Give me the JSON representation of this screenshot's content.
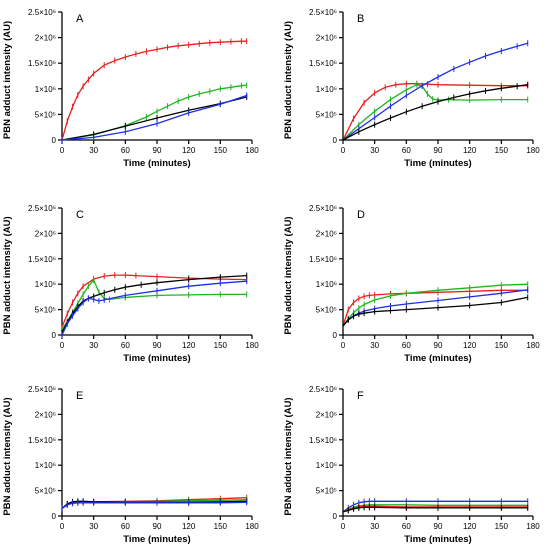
{
  "figure": {
    "colors": {
      "red": "#e8201e",
      "green": "#1fb51f",
      "blue": "#1c2fe6",
      "black": "#000000"
    }
  },
  "chart_data": [
    {
      "type": "line",
      "panel": "A",
      "xlabel": "Time (minutes)",
      "ylabel": "PBN adduct intensity (AU)",
      "xlim": [
        0,
        180
      ],
      "ylim": [
        0,
        2500000
      ],
      "xticks": [
        "0",
        "30",
        "60",
        "90",
        "120",
        "150",
        "180"
      ],
      "yticks": [
        "0",
        "5×10⁵",
        "1×10⁶",
        "1.5×10⁶",
        "2×10⁶",
        "2.5×10⁶"
      ],
      "series": [
        {
          "color": "red",
          "x": [
            0,
            5,
            10,
            15,
            20,
            25,
            30,
            40,
            50,
            60,
            70,
            80,
            90,
            100,
            110,
            120,
            130,
            140,
            150,
            160,
            170,
            175
          ],
          "y": [
            0,
            370000,
            650000,
            880000,
            1050000,
            1180000,
            1300000,
            1460000,
            1550000,
            1620000,
            1680000,
            1730000,
            1770000,
            1810000,
            1840000,
            1860000,
            1880000,
            1900000,
            1910000,
            1920000,
            1930000,
            1930000
          ]
        },
        {
          "color": "green",
          "x": [
            0,
            30,
            60,
            80,
            90,
            100,
            110,
            120,
            130,
            140,
            150,
            160,
            170,
            175
          ],
          "y": [
            0,
            100000,
            280000,
            450000,
            560000,
            660000,
            760000,
            840000,
            900000,
            950000,
            1000000,
            1030000,
            1060000,
            1070000
          ]
        },
        {
          "color": "black",
          "x": [
            0,
            30,
            60,
            90,
            120,
            150,
            175
          ],
          "y": [
            0,
            110000,
            270000,
            430000,
            580000,
            710000,
            840000
          ]
        },
        {
          "color": "blue",
          "x": [
            0,
            30,
            60,
            90,
            120,
            150,
            175
          ],
          "y": [
            0,
            50000,
            160000,
            320000,
            530000,
            700000,
            870000
          ]
        }
      ]
    },
    {
      "type": "line",
      "panel": "B",
      "xlabel": "Time (minutes)",
      "ylabel": "PBN adduct intensity (AU)",
      "xlim": [
        0,
        180
      ],
      "ylim": [
        0,
        2500000
      ],
      "xticks": [
        "0",
        "30",
        "60",
        "90",
        "120",
        "150",
        "180"
      ],
      "yticks": [
        "0",
        "5×10⁵",
        "1×10⁶",
        "1.5×10⁶",
        "2×10⁶",
        "2.5×10⁶"
      ],
      "series": [
        {
          "color": "red",
          "x": [
            0,
            10,
            20,
            30,
            40,
            50,
            60,
            70,
            80,
            90,
            120,
            150,
            175
          ],
          "y": [
            0,
            420000,
            730000,
            920000,
            1030000,
            1080000,
            1100000,
            1100000,
            1090000,
            1080000,
            1070000,
            1060000,
            1060000
          ]
        },
        {
          "color": "green",
          "x": [
            0,
            15,
            30,
            45,
            60,
            70,
            75,
            80,
            85,
            90,
            100,
            120,
            150,
            175
          ],
          "y": [
            0,
            300000,
            560000,
            790000,
            980000,
            1080000,
            1050000,
            900000,
            800000,
            780000,
            790000,
            780000,
            790000,
            790000
          ]
        },
        {
          "color": "blue",
          "x": [
            0,
            15,
            30,
            45,
            60,
            75,
            90,
            105,
            120,
            135,
            150,
            165,
            175
          ],
          "y": [
            0,
            220000,
            440000,
            660000,
            870000,
            1060000,
            1230000,
            1390000,
            1520000,
            1640000,
            1740000,
            1830000,
            1890000
          ]
        },
        {
          "color": "black",
          "x": [
            0,
            15,
            30,
            45,
            60,
            75,
            90,
            105,
            120,
            135,
            150,
            165,
            175
          ],
          "y": [
            0,
            160000,
            300000,
            430000,
            550000,
            660000,
            750000,
            830000,
            900000,
            960000,
            1010000,
            1050000,
            1080000
          ]
        }
      ]
    },
    {
      "type": "line",
      "panel": "C",
      "xlabel": "Time (minutes)",
      "ylabel": "PBN adduct intensity (AU)",
      "xlim": [
        0,
        180
      ],
      "ylim": [
        0,
        2500000
      ],
      "xticks": [
        "0",
        "30",
        "60",
        "90",
        "120",
        "150",
        "180"
      ],
      "yticks": [
        "0",
        "5×10⁵",
        "1×10⁶",
        "1.5×10⁶",
        "2×10⁶",
        "2.5×10⁶"
      ],
      "series": [
        {
          "color": "red",
          "x": [
            0,
            5,
            10,
            15,
            20,
            30,
            40,
            50,
            60,
            70,
            90,
            120,
            150,
            175
          ],
          "y": [
            150000,
            420000,
            640000,
            820000,
            960000,
            1100000,
            1160000,
            1180000,
            1180000,
            1170000,
            1150000,
            1120000,
            1100000,
            1090000
          ]
        },
        {
          "color": "green",
          "x": [
            0,
            5,
            10,
            15,
            20,
            25,
            30,
            35,
            40,
            45,
            60,
            90,
            120,
            150,
            175
          ],
          "y": [
            100000,
            270000,
            450000,
            620000,
            800000,
            960000,
            1080000,
            840000,
            720000,
            700000,
            740000,
            780000,
            790000,
            800000,
            800000
          ]
        },
        {
          "color": "black",
          "x": [
            0,
            5,
            10,
            15,
            20,
            25,
            30,
            40,
            50,
            60,
            75,
            90,
            120,
            150,
            175
          ],
          "y": [
            50000,
            250000,
            420000,
            560000,
            670000,
            720000,
            760000,
            830000,
            890000,
            940000,
            990000,
            1030000,
            1090000,
            1140000,
            1170000
          ]
        },
        {
          "color": "blue",
          "x": [
            0,
            5,
            10,
            15,
            20,
            25,
            30,
            35,
            40,
            60,
            90,
            120,
            150,
            175
          ],
          "y": [
            0,
            220000,
            380000,
            520000,
            640000,
            720000,
            700000,
            670000,
            690000,
            780000,
            870000,
            960000,
            1020000,
            1060000
          ]
        }
      ]
    },
    {
      "type": "line",
      "panel": "D",
      "xlabel": "Time (minutes)",
      "ylabel": "PBN adduct intensity (AU)",
      "xlim": [
        0,
        180
      ],
      "ylim": [
        0,
        2500000
      ],
      "xticks": [
        "0",
        "30",
        "60",
        "90",
        "120",
        "150",
        "180"
      ],
      "yticks": [
        "0",
        "5×10⁵",
        "1×10⁶",
        "1.5×10⁶",
        "2×10⁶",
        "2.5×10⁶"
      ],
      "series": [
        {
          "color": "red",
          "x": [
            0,
            5,
            10,
            15,
            20,
            25,
            30,
            45,
            60,
            90,
            120,
            150,
            175
          ],
          "y": [
            180000,
            500000,
            640000,
            720000,
            760000,
            780000,
            790000,
            810000,
            820000,
            840000,
            860000,
            880000,
            880000
          ]
        },
        {
          "color": "green",
          "x": [
            0,
            5,
            10,
            15,
            20,
            30,
            45,
            60,
            90,
            120,
            150,
            175
          ],
          "y": [
            180000,
            320000,
            440000,
            530000,
            600000,
            690000,
            770000,
            820000,
            880000,
            930000,
            980000,
            1000000
          ]
        },
        {
          "color": "blue",
          "x": [
            0,
            5,
            10,
            15,
            20,
            30,
            45,
            60,
            90,
            120,
            150,
            175
          ],
          "y": [
            180000,
            300000,
            380000,
            430000,
            470000,
            520000,
            570000,
            610000,
            680000,
            750000,
            820000,
            890000
          ]
        },
        {
          "color": "black",
          "x": [
            0,
            5,
            10,
            15,
            20,
            30,
            45,
            60,
            90,
            120,
            150,
            175
          ],
          "y": [
            180000,
            300000,
            370000,
            410000,
            430000,
            460000,
            480000,
            500000,
            540000,
            580000,
            640000,
            740000
          ]
        }
      ]
    },
    {
      "type": "line",
      "panel": "E",
      "xlabel": "Time (minutes)",
      "ylabel": "PBN adduct intensity (AU)",
      "xlim": [
        0,
        180
      ],
      "ylim": [
        0,
        2500000
      ],
      "xticks": [
        "0",
        "30",
        "60",
        "90",
        "120",
        "150",
        "180"
      ],
      "yticks": [
        "0",
        "5×10⁵",
        "1×10⁶",
        "1.5×10⁶",
        "2×10⁶",
        "2.5×10⁶"
      ],
      "series": [
        {
          "color": "red",
          "x": [
            0,
            5,
            10,
            15,
            20,
            30,
            60,
            90,
            120,
            150,
            175
          ],
          "y": [
            150000,
            230000,
            270000,
            280000,
            280000,
            280000,
            290000,
            300000,
            320000,
            340000,
            360000
          ]
        },
        {
          "color": "green",
          "x": [
            0,
            5,
            10,
            15,
            20,
            30,
            60,
            90,
            120,
            150,
            175
          ],
          "y": [
            150000,
            220000,
            260000,
            270000,
            270000,
            270000,
            280000,
            290000,
            300000,
            310000,
            320000
          ]
        },
        {
          "color": "black",
          "x": [
            0,
            5,
            10,
            15,
            20,
            30,
            60,
            90,
            120,
            150,
            175
          ],
          "y": [
            150000,
            240000,
            280000,
            290000,
            290000,
            280000,
            270000,
            270000,
            270000,
            280000,
            290000
          ]
        },
        {
          "color": "blue",
          "x": [
            0,
            5,
            10,
            15,
            20,
            30,
            60,
            90,
            120,
            150,
            175
          ],
          "y": [
            150000,
            220000,
            250000,
            260000,
            260000,
            260000,
            260000,
            260000,
            260000,
            260000,
            270000
          ]
        }
      ]
    },
    {
      "type": "line",
      "panel": "F",
      "xlabel": "Time (minutes)",
      "ylabel": "PBN adduct intensity (AU)",
      "xlim": [
        0,
        180
      ],
      "ylim": [
        0,
        2500000
      ],
      "xticks": [
        "0",
        "30",
        "60",
        "90",
        "120",
        "150",
        "180"
      ],
      "yticks": [
        "0",
        "5×10⁵",
        "1×10⁶",
        "1.5×10⁶",
        "2×10⁶",
        "2.5×10⁶"
      ],
      "series": [
        {
          "color": "blue",
          "x": [
            0,
            5,
            10,
            15,
            20,
            25,
            30,
            60,
            90,
            120,
            150,
            175
          ],
          "y": [
            80000,
            160000,
            220000,
            260000,
            280000,
            290000,
            290000,
            290000,
            290000,
            290000,
            290000,
            290000
          ]
        },
        {
          "color": "green",
          "x": [
            0,
            5,
            10,
            15,
            20,
            25,
            30,
            60,
            90,
            120,
            150,
            175
          ],
          "y": [
            80000,
            130000,
            170000,
            200000,
            210000,
            220000,
            220000,
            220000,
            210000,
            210000,
            210000,
            210000
          ]
        },
        {
          "color": "red",
          "x": [
            0,
            5,
            10,
            15,
            20,
            25,
            30,
            60,
            90,
            120,
            150,
            175
          ],
          "y": [
            80000,
            120000,
            160000,
            180000,
            190000,
            190000,
            190000,
            180000,
            180000,
            180000,
            180000,
            180000
          ]
        },
        {
          "color": "black",
          "x": [
            0,
            5,
            10,
            15,
            20,
            25,
            30,
            60,
            90,
            120,
            150,
            175
          ],
          "y": [
            80000,
            110000,
            140000,
            160000,
            170000,
            170000,
            170000,
            160000,
            160000,
            160000,
            160000,
            160000
          ]
        }
      ]
    }
  ]
}
